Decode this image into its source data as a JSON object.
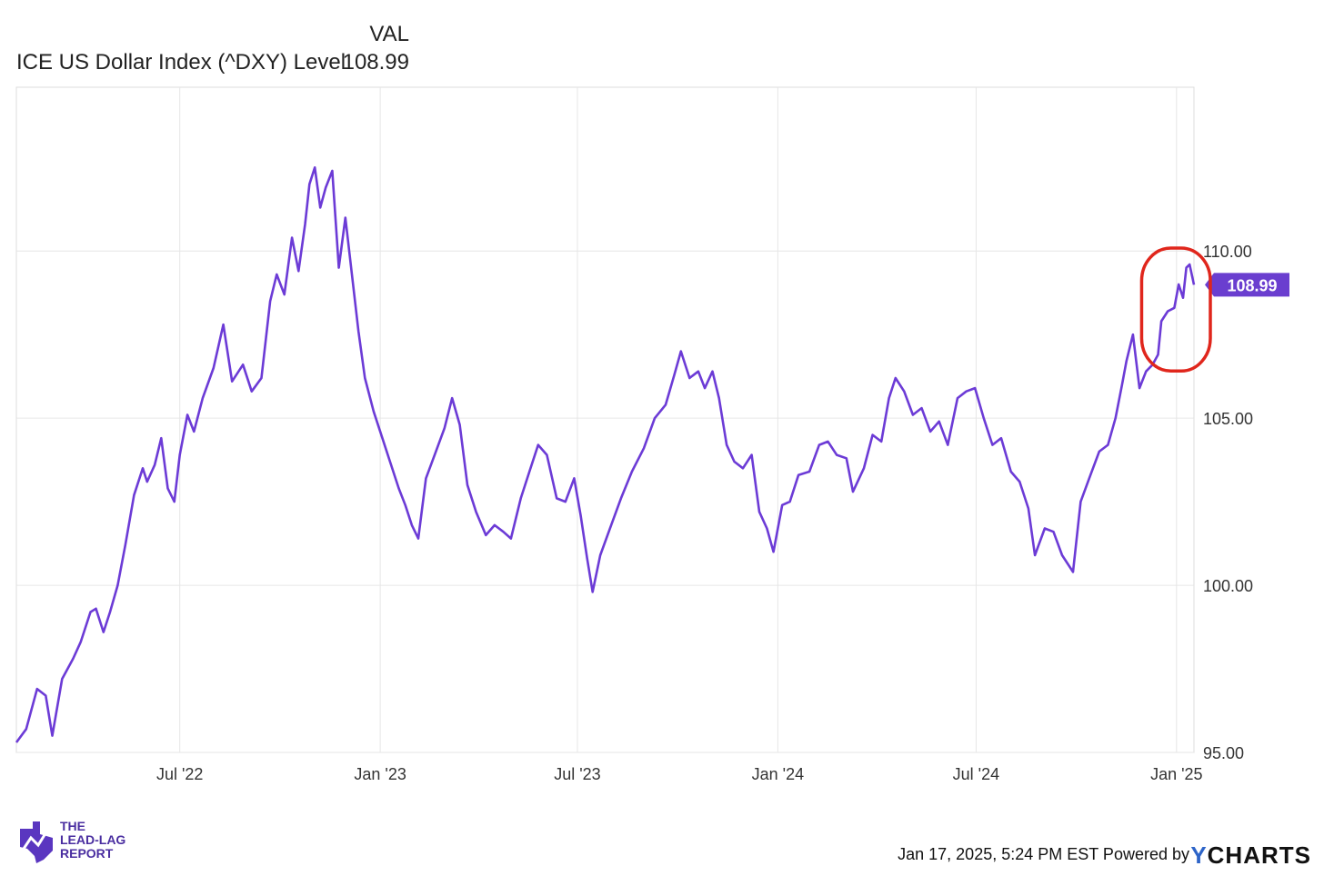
{
  "legend": {
    "column_header": "VAL",
    "series_name": "ICE US Dollar Index (^DXY) Level",
    "series_value": "108.99"
  },
  "footer": {
    "timestamp": "Jan 17, 2025, 5:24 PM EST Powered by",
    "powered_by_logo": "YCHARTS",
    "brand_logo_text": [
      "THE",
      "LEAD-LAG",
      "REPORT"
    ]
  },
  "colors": {
    "line": "#6c3bd6",
    "badge": "#6a3ecf",
    "highlight_circle": "#e0261c",
    "grid": "#e6e6e6"
  },
  "chart_data": {
    "type": "line",
    "title": "",
    "xlabel": "",
    "ylabel": "",
    "ylim": [
      95.0,
      114.9
    ],
    "xlim": [
      "2022-02-01",
      "2025-01-17"
    ],
    "y_ticks": [
      "95.00",
      "100.00",
      "105.00",
      "110.00"
    ],
    "y_tick_values": [
      95,
      100,
      105,
      110
    ],
    "x_ticks": [
      "Jul '22",
      "Jan '23",
      "Jul '23",
      "Jan '24",
      "Jul '24",
      "Jan '25"
    ],
    "x_tick_dates": [
      "2022-07-01",
      "2023-01-01",
      "2023-07-01",
      "2024-01-01",
      "2024-07-01",
      "2025-01-01"
    ],
    "last_value_label": "108.99",
    "grid": true,
    "annotation": "red circle around late Dec 2024 – Jan 2025 values",
    "annotation_range": [
      "2024-12-15",
      "2025-01-17"
    ],
    "series": [
      {
        "name": "ICE US Dollar Index (^DXY) Level",
        "points": [
          [
            "2022-02-01",
            95.3
          ],
          [
            "2022-02-10",
            95.7
          ],
          [
            "2022-02-20",
            96.9
          ],
          [
            "2022-02-28",
            96.7
          ],
          [
            "2022-03-06",
            95.5
          ],
          [
            "2022-03-15",
            97.2
          ],
          [
            "2022-03-25",
            97.8
          ],
          [
            "2022-04-01",
            98.3
          ],
          [
            "2022-04-10",
            99.2
          ],
          [
            "2022-04-15",
            99.3
          ],
          [
            "2022-04-22",
            98.6
          ],
          [
            "2022-04-28",
            99.2
          ],
          [
            "2022-05-05",
            100.0
          ],
          [
            "2022-05-12",
            101.2
          ],
          [
            "2022-05-20",
            102.7
          ],
          [
            "2022-05-28",
            103.5
          ],
          [
            "2022-06-01",
            103.1
          ],
          [
            "2022-06-08",
            103.6
          ],
          [
            "2022-06-14",
            104.4
          ],
          [
            "2022-06-20",
            102.9
          ],
          [
            "2022-06-26",
            102.5
          ],
          [
            "2022-07-01",
            103.9
          ],
          [
            "2022-07-08",
            105.1
          ],
          [
            "2022-07-14",
            104.6
          ],
          [
            "2022-07-22",
            105.6
          ],
          [
            "2022-08-01",
            106.5
          ],
          [
            "2022-08-10",
            107.8
          ],
          [
            "2022-08-18",
            106.1
          ],
          [
            "2022-08-28",
            106.6
          ],
          [
            "2022-09-05",
            105.8
          ],
          [
            "2022-09-14",
            106.2
          ],
          [
            "2022-09-22",
            108.5
          ],
          [
            "2022-09-28",
            109.3
          ],
          [
            "2022-10-05",
            108.7
          ],
          [
            "2022-10-12",
            110.4
          ],
          [
            "2022-10-18",
            109.4
          ],
          [
            "2022-10-24",
            110.8
          ],
          [
            "2022-10-28",
            112.0
          ],
          [
            "2022-11-02",
            112.5
          ],
          [
            "2022-11-07",
            111.3
          ],
          [
            "2022-11-12",
            111.9
          ],
          [
            "2022-11-18",
            112.4
          ],
          [
            "2022-11-24",
            109.5
          ],
          [
            "2022-11-30",
            111.0
          ],
          [
            "2022-12-06",
            109.3
          ],
          [
            "2022-12-12",
            107.6
          ],
          [
            "2022-12-18",
            106.2
          ],
          [
            "2022-12-26",
            105.2
          ],
          [
            "2023-01-03",
            104.4
          ],
          [
            "2023-01-10",
            103.7
          ],
          [
            "2023-01-18",
            102.9
          ],
          [
            "2023-01-24",
            102.4
          ],
          [
            "2023-01-30",
            101.8
          ],
          [
            "2023-02-05",
            101.4
          ],
          [
            "2023-02-12",
            103.2
          ],
          [
            "2023-02-20",
            103.9
          ],
          [
            "2023-03-01",
            104.7
          ],
          [
            "2023-03-08",
            105.6
          ],
          [
            "2023-03-15",
            104.8
          ],
          [
            "2023-03-22",
            103.0
          ],
          [
            "2023-03-30",
            102.2
          ],
          [
            "2023-04-08",
            101.5
          ],
          [
            "2023-04-16",
            101.8
          ],
          [
            "2023-04-24",
            101.6
          ],
          [
            "2023-05-01",
            101.4
          ],
          [
            "2023-05-10",
            102.6
          ],
          [
            "2023-05-18",
            103.4
          ],
          [
            "2023-05-26",
            104.2
          ],
          [
            "2023-06-03",
            103.9
          ],
          [
            "2023-06-12",
            102.6
          ],
          [
            "2023-06-20",
            102.5
          ],
          [
            "2023-06-28",
            103.2
          ],
          [
            "2023-07-04",
            102.1
          ],
          [
            "2023-07-10",
            100.8
          ],
          [
            "2023-07-15",
            99.8
          ],
          [
            "2023-07-22",
            100.9
          ],
          [
            "2023-08-01",
            101.8
          ],
          [
            "2023-08-10",
            102.6
          ],
          [
            "2023-08-20",
            103.4
          ],
          [
            "2023-08-31",
            104.1
          ],
          [
            "2023-09-10",
            105.0
          ],
          [
            "2023-09-20",
            105.4
          ],
          [
            "2023-09-28",
            106.3
          ],
          [
            "2023-10-04",
            107.0
          ],
          [
            "2023-10-12",
            106.2
          ],
          [
            "2023-10-20",
            106.4
          ],
          [
            "2023-10-26",
            105.9
          ],
          [
            "2023-11-02",
            106.4
          ],
          [
            "2023-11-08",
            105.6
          ],
          [
            "2023-11-15",
            104.2
          ],
          [
            "2023-11-22",
            103.7
          ],
          [
            "2023-11-30",
            103.5
          ],
          [
            "2023-12-08",
            103.9
          ],
          [
            "2023-12-15",
            102.2
          ],
          [
            "2023-12-22",
            101.7
          ],
          [
            "2023-12-28",
            101.0
          ],
          [
            "2024-01-05",
            102.4
          ],
          [
            "2024-01-12",
            102.5
          ],
          [
            "2024-01-20",
            103.3
          ],
          [
            "2024-01-30",
            103.4
          ],
          [
            "2024-02-08",
            104.2
          ],
          [
            "2024-02-16",
            104.3
          ],
          [
            "2024-02-24",
            103.9
          ],
          [
            "2024-03-04",
            103.8
          ],
          [
            "2024-03-10",
            102.8
          ],
          [
            "2024-03-20",
            103.5
          ],
          [
            "2024-03-28",
            104.5
          ],
          [
            "2024-04-05",
            104.3
          ],
          [
            "2024-04-12",
            105.6
          ],
          [
            "2024-04-18",
            106.2
          ],
          [
            "2024-04-26",
            105.8
          ],
          [
            "2024-05-04",
            105.1
          ],
          [
            "2024-05-12",
            105.3
          ],
          [
            "2024-05-20",
            104.6
          ],
          [
            "2024-05-28",
            104.9
          ],
          [
            "2024-06-05",
            104.2
          ],
          [
            "2024-06-14",
            105.6
          ],
          [
            "2024-06-22",
            105.8
          ],
          [
            "2024-06-30",
            105.9
          ],
          [
            "2024-07-08",
            105.0
          ],
          [
            "2024-07-16",
            104.2
          ],
          [
            "2024-07-24",
            104.4
          ],
          [
            "2024-08-02",
            103.4
          ],
          [
            "2024-08-10",
            103.1
          ],
          [
            "2024-08-18",
            102.3
          ],
          [
            "2024-08-24",
            100.9
          ],
          [
            "2024-09-02",
            101.7
          ],
          [
            "2024-09-10",
            101.6
          ],
          [
            "2024-09-18",
            100.9
          ],
          [
            "2024-09-24",
            100.6
          ],
          [
            "2024-09-28",
            100.4
          ],
          [
            "2024-10-05",
            102.5
          ],
          [
            "2024-10-14",
            103.3
          ],
          [
            "2024-10-22",
            104.0
          ],
          [
            "2024-10-30",
            104.2
          ],
          [
            "2024-11-06",
            105.0
          ],
          [
            "2024-11-12",
            106.0
          ],
          [
            "2024-11-16",
            106.7
          ],
          [
            "2024-11-22",
            107.5
          ],
          [
            "2024-11-28",
            105.9
          ],
          [
            "2024-12-04",
            106.4
          ],
          [
            "2024-12-10",
            106.6
          ],
          [
            "2024-12-15",
            106.9
          ],
          [
            "2024-12-18",
            107.9
          ],
          [
            "2024-12-24",
            108.2
          ],
          [
            "2024-12-30",
            108.3
          ],
          [
            "2025-01-03",
            109.0
          ],
          [
            "2025-01-07",
            108.6
          ],
          [
            "2025-01-10",
            109.5
          ],
          [
            "2025-01-13",
            109.6
          ],
          [
            "2025-01-17",
            108.99
          ]
        ]
      }
    ]
  }
}
